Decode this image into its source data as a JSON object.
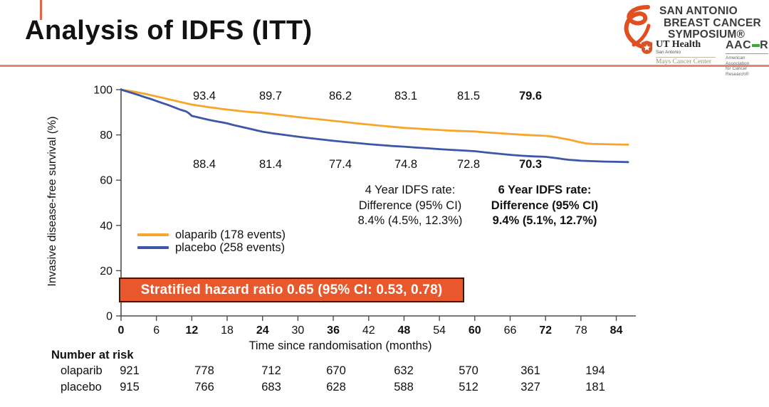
{
  "header": {
    "title": "Analysis of IDFS (ITT)",
    "accent_color": "#E8846C",
    "logo": {
      "line1": "SAN ANTONIO",
      "line2": "BREAST CANCER",
      "line3": "SYMPOSIUM®",
      "ut_health": "UT Health",
      "ut_sub": "San Antonio",
      "ut_center": "Mays Cancer Center",
      "aacr_left": "AAC",
      "aacr_right": "R",
      "aacr_sub1": "American Association",
      "aacr_sub2": "for Cancer Research®"
    }
  },
  "chart_data": {
    "type": "line",
    "title": "",
    "xlabel": "Time since randomisation (months)",
    "ylabel": "Invasive disease-free survival (%)",
    "xlim": [
      0,
      87
    ],
    "ylim": [
      0,
      100
    ],
    "xticks": [
      0,
      6,
      12,
      18,
      24,
      30,
      36,
      42,
      48,
      54,
      60,
      66,
      72,
      78,
      84
    ],
    "xticks_bold": [
      0,
      12,
      24,
      36,
      48,
      60,
      72,
      84
    ],
    "yticks": [
      0,
      20,
      40,
      60,
      80,
      100
    ],
    "grid": false,
    "legend_position": "left-middle",
    "label_timepoints_months": [
      12,
      24,
      36,
      48,
      60,
      72
    ],
    "series": [
      {
        "name": "olaparib (178 events)",
        "color": "#F7A62B",
        "rate_labels": [
          "93.4",
          "89.7",
          "86.2",
          "83.1",
          "81.5",
          "79.6"
        ],
        "points": [
          [
            0,
            100
          ],
          [
            1,
            99.6
          ],
          [
            2,
            99.2
          ],
          [
            3,
            98.7
          ],
          [
            4,
            98.2
          ],
          [
            5,
            97.6
          ],
          [
            6,
            97.0
          ],
          [
            7,
            96.4
          ],
          [
            8,
            95.8
          ],
          [
            9,
            95.2
          ],
          [
            10,
            94.6
          ],
          [
            11,
            94.0
          ],
          [
            12,
            93.4
          ],
          [
            13,
            93.0
          ],
          [
            14,
            92.6
          ],
          [
            15,
            92.2
          ],
          [
            16,
            91.9
          ],
          [
            17,
            91.5
          ],
          [
            18,
            91.2
          ],
          [
            19,
            90.9
          ],
          [
            20,
            90.6
          ],
          [
            21,
            90.3
          ],
          [
            22,
            90.1
          ],
          [
            23,
            89.9
          ],
          [
            24,
            89.7
          ],
          [
            26,
            89.1
          ],
          [
            28,
            88.5
          ],
          [
            30,
            87.9
          ],
          [
            32,
            87.3
          ],
          [
            34,
            86.8
          ],
          [
            36,
            86.2
          ],
          [
            38,
            85.7
          ],
          [
            40,
            85.1
          ],
          [
            42,
            84.6
          ],
          [
            44,
            84.1
          ],
          [
            46,
            83.6
          ],
          [
            48,
            83.1
          ],
          [
            50,
            82.8
          ],
          [
            52,
            82.5
          ],
          [
            54,
            82.2
          ],
          [
            56,
            81.9
          ],
          [
            58,
            81.7
          ],
          [
            60,
            81.5
          ],
          [
            62,
            81.1
          ],
          [
            64,
            80.8
          ],
          [
            66,
            80.4
          ],
          [
            68,
            80.1
          ],
          [
            70,
            79.8
          ],
          [
            72,
            79.6
          ],
          [
            73,
            79.3
          ],
          [
            74,
            78.9
          ],
          [
            75,
            78.4
          ],
          [
            76,
            77.9
          ],
          [
            77,
            77.3
          ],
          [
            78,
            76.7
          ],
          [
            79,
            76.2
          ],
          [
            80,
            76.0
          ],
          [
            82,
            75.9
          ],
          [
            84,
            75.8
          ],
          [
            86,
            75.7
          ]
        ]
      },
      {
        "name": "placebo (258 events)",
        "color": "#3D57A8",
        "rate_labels": [
          "88.4",
          "81.4",
          "77.4",
          "74.8",
          "72.8",
          "70.3"
        ],
        "points": [
          [
            0,
            100
          ],
          [
            1,
            99.2
          ],
          [
            2,
            98.4
          ],
          [
            3,
            97.6
          ],
          [
            4,
            96.7
          ],
          [
            5,
            95.9
          ],
          [
            6,
            95.0
          ],
          [
            7,
            94.1
          ],
          [
            8,
            93.2
          ],
          [
            9,
            92.2
          ],
          [
            10,
            91.2
          ],
          [
            11,
            90.4
          ],
          [
            11.5,
            89.6
          ],
          [
            12,
            88.4
          ],
          [
            13,
            87.8
          ],
          [
            14,
            87.2
          ],
          [
            15,
            86.6
          ],
          [
            16,
            86.1
          ],
          [
            17,
            85.6
          ],
          [
            18,
            85.1
          ],
          [
            19,
            84.4
          ],
          [
            20,
            83.8
          ],
          [
            21,
            83.2
          ],
          [
            22,
            82.6
          ],
          [
            23,
            82.0
          ],
          [
            24,
            81.4
          ],
          [
            26,
            80.6
          ],
          [
            28,
            79.9
          ],
          [
            30,
            79.2
          ],
          [
            32,
            78.6
          ],
          [
            34,
            78.0
          ],
          [
            36,
            77.4
          ],
          [
            38,
            76.9
          ],
          [
            40,
            76.4
          ],
          [
            42,
            75.9
          ],
          [
            44,
            75.5
          ],
          [
            46,
            75.1
          ],
          [
            48,
            74.8
          ],
          [
            50,
            74.4
          ],
          [
            52,
            74.1
          ],
          [
            54,
            73.7
          ],
          [
            56,
            73.4
          ],
          [
            58,
            73.1
          ],
          [
            60,
            72.8
          ],
          [
            62,
            72.2
          ],
          [
            64,
            71.7
          ],
          [
            66,
            71.2
          ],
          [
            68,
            70.8
          ],
          [
            70,
            70.5
          ],
          [
            72,
            70.3
          ],
          [
            73,
            70.0
          ],
          [
            74,
            69.7
          ],
          [
            75,
            69.3
          ],
          [
            76,
            69.0
          ],
          [
            77,
            68.8
          ],
          [
            78,
            68.6
          ],
          [
            80,
            68.4
          ],
          [
            82,
            68.2
          ],
          [
            84,
            68.1
          ],
          [
            86,
            68.0
          ]
        ]
      }
    ],
    "annotations": {
      "four_year": {
        "title": "4 Year IDFS rate:",
        "line2": "Difference (95% CI)",
        "line3": "8.4% (4.5%, 12.3%)"
      },
      "six_year": {
        "title": "6 Year IDFS rate:",
        "line2": "Difference (95% CI)",
        "line3": "9.4% (5.1%, 12.7%)"
      }
    },
    "hr_box": {
      "text": "Stratified hazard ratio 0.65 (95% CI: 0.53, 0.78)",
      "bg_color": "#E9582D"
    }
  },
  "number_at_risk": {
    "title": "Number at risk",
    "timepoints": [
      0,
      12,
      24,
      36,
      48,
      60,
      72,
      84
    ],
    "rows": [
      {
        "label": "olaparib",
        "values": [
          "921",
          "778",
          "712",
          "670",
          "632",
          "570",
          "361",
          "194"
        ]
      },
      {
        "label": "placebo",
        "values": [
          "915",
          "766",
          "683",
          "628",
          "588",
          "512",
          "327",
          "181"
        ]
      }
    ]
  }
}
